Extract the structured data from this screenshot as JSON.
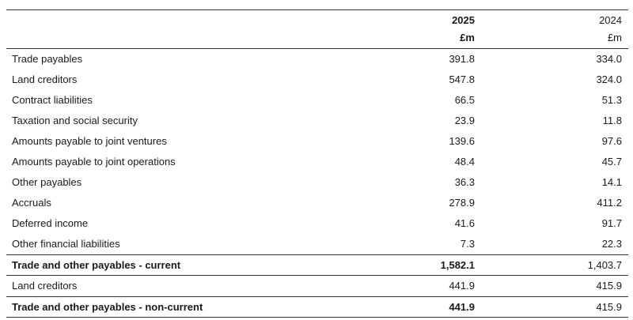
{
  "header": {
    "col1_year": "2025",
    "col1_unit": "£m",
    "col2_year": "2024",
    "col2_unit": "£m"
  },
  "rows": [
    {
      "label": "Trade payables",
      "v2025": "391.8",
      "v2024": "334.0"
    },
    {
      "label": "Land creditors",
      "v2025": "547.8",
      "v2024": "324.0"
    },
    {
      "label": "Contract liabilities",
      "v2025": "66.5",
      "v2024": "51.3"
    },
    {
      "label": "Taxation and social security",
      "v2025": "23.9",
      "v2024": "11.8"
    },
    {
      "label": "Amounts payable to joint ventures",
      "v2025": "139.6",
      "v2024": "97.6"
    },
    {
      "label": "Amounts payable to joint operations",
      "v2025": "48.4",
      "v2024": "45.7"
    },
    {
      "label": "Other payables",
      "v2025": "36.3",
      "v2024": "14.1"
    },
    {
      "label": "Accruals",
      "v2025": "278.9",
      "v2024": "411.2"
    },
    {
      "label": "Deferred income",
      "v2025": "41.6",
      "v2024": "91.7"
    },
    {
      "label": "Other financial liabilities",
      "v2025": "7.3",
      "v2024": "22.3"
    }
  ],
  "total_current": {
    "label": "Trade and other payables - current",
    "v2025": "1,582.1",
    "v2024": "1,403.7"
  },
  "noncurrent_row": {
    "label": "Land creditors",
    "v2025": "441.9",
    "v2024": "415.9"
  },
  "total_noncurrent": {
    "label": "Trade and other payables - non-current",
    "v2025": "441.9",
    "v2024": "415.9"
  }
}
